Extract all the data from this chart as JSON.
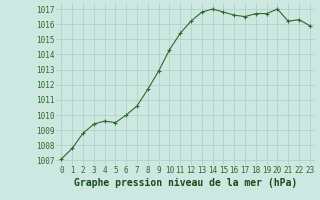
{
  "x": [
    0,
    1,
    2,
    3,
    4,
    5,
    6,
    7,
    8,
    9,
    10,
    11,
    12,
    13,
    14,
    15,
    16,
    17,
    18,
    19,
    20,
    21,
    22,
    23
  ],
  "y": [
    1007.1,
    1007.8,
    1008.8,
    1009.4,
    1009.6,
    1009.5,
    1010.0,
    1010.6,
    1011.7,
    1012.9,
    1014.3,
    1015.4,
    1016.2,
    1016.8,
    1017.0,
    1016.8,
    1016.6,
    1016.5,
    1016.7,
    1016.7,
    1017.0,
    1016.2,
    1016.3,
    1015.9
  ],
  "line_color": "#2d6a2d",
  "marker_color": "#2d6a2d",
  "bg_color": "#cce8e0",
  "grid_color": "#aacfc8",
  "xlabel": "Graphe pression niveau de la mer (hPa)",
  "xlabel_color": "#1a4a1a",
  "ylabel_ticks": [
    1007,
    1008,
    1009,
    1010,
    1011,
    1012,
    1013,
    1014,
    1015,
    1016,
    1017
  ],
  "ylim": [
    1006.7,
    1017.4
  ],
  "xlim": [
    -0.5,
    23.5
  ],
  "tick_color": "#2d6a2d",
  "tick_fontsize": 5.5,
  "xlabel_fontsize": 7.0
}
